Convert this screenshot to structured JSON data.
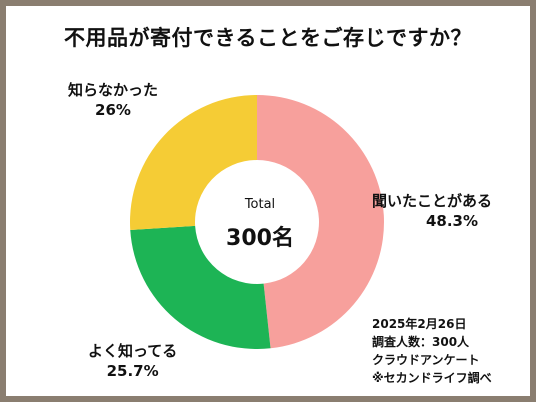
{
  "title": "不用品が寄付できることをご存じですか？",
  "center": {
    "label": "Total",
    "value": "300名"
  },
  "chart_data": {
    "type": "pie",
    "title": "不用品が寄付できることをご存じですか？",
    "categories": [
      "聞いたことがある",
      "よく知ってる",
      "知らなかった"
    ],
    "values": [
      48.3,
      25.7,
      26
    ],
    "value_labels": [
      "48.3%",
      "25.7%",
      "26%"
    ],
    "colors": [
      "#f7a09c",
      "#1db455",
      "#f5cc35"
    ],
    "donut": true,
    "start": "top, clockwise"
  },
  "notes": [
    "2025年2月26日",
    "調査人数：300人",
    "クラウドアンケート",
    "※セカンドライフ調べ"
  ]
}
